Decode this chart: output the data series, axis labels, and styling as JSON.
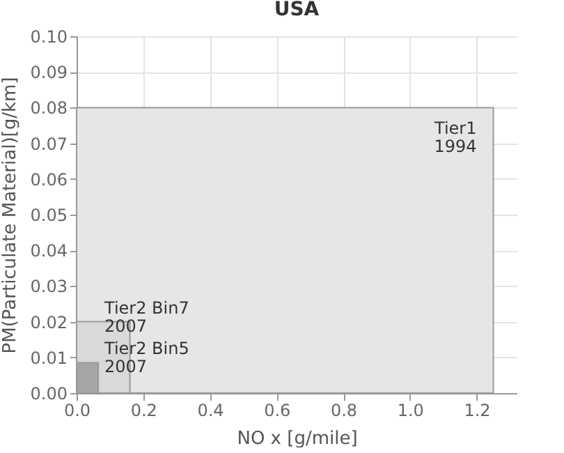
{
  "chart_data": {
    "type": "area",
    "title": "USA",
    "xlabel": "NO x [g/mile]",
    "ylabel": "PM(Particulate Material)[g/km]",
    "series": [
      {
        "name": "Tier1 1994",
        "color": "#e6e6e6",
        "x": [
          0,
          1.25
        ],
        "values": [
          0.08,
          0.08
        ]
      },
      {
        "name": "Tier2 Bin7 2007",
        "color": "#d9d9d9",
        "x": [
          0,
          0.16
        ],
        "values": [
          0.02,
          0.02
        ]
      },
      {
        "name": "Tier2 Bin5 2007",
        "color": "#a6a6a6",
        "x": [
          0,
          0.065
        ],
        "values": [
          0.0085,
          0.0085
        ]
      }
    ],
    "xlim": [
      0,
      1.32
    ],
    "xticks": [
      {
        "value": 0,
        "label": "0.0"
      },
      {
        "value": 0.2,
        "label": "0.2"
      },
      {
        "value": 0.4,
        "label": "0.4"
      },
      {
        "value": 0.6,
        "label": "0.6"
      },
      {
        "value": 0.8,
        "label": "0.8"
      },
      {
        "value": 1.0,
        "label": "1.0"
      },
      {
        "value": 1.2,
        "label": "1.2"
      }
    ],
    "ylim": [
      0,
      0.1
    ],
    "yticks": [
      {
        "value": 0,
        "label": "0.00"
      },
      {
        "value": 0.01,
        "label": "0.01"
      },
      {
        "value": 0.02,
        "label": "0.02"
      },
      {
        "value": 0.03,
        "label": "0.03"
      },
      {
        "value": 0.04,
        "label": "0.04"
      },
      {
        "value": 0.05,
        "label": "0.05"
      },
      {
        "value": 0.06,
        "label": "0.06"
      },
      {
        "value": 0.07,
        "label": "0.07"
      },
      {
        "value": 0.08,
        "label": "0.08"
      },
      {
        "value": 0.09,
        "label": "0.09"
      },
      {
        "value": 0.1,
        "label": "0.10"
      }
    ],
    "grid": true
  }
}
